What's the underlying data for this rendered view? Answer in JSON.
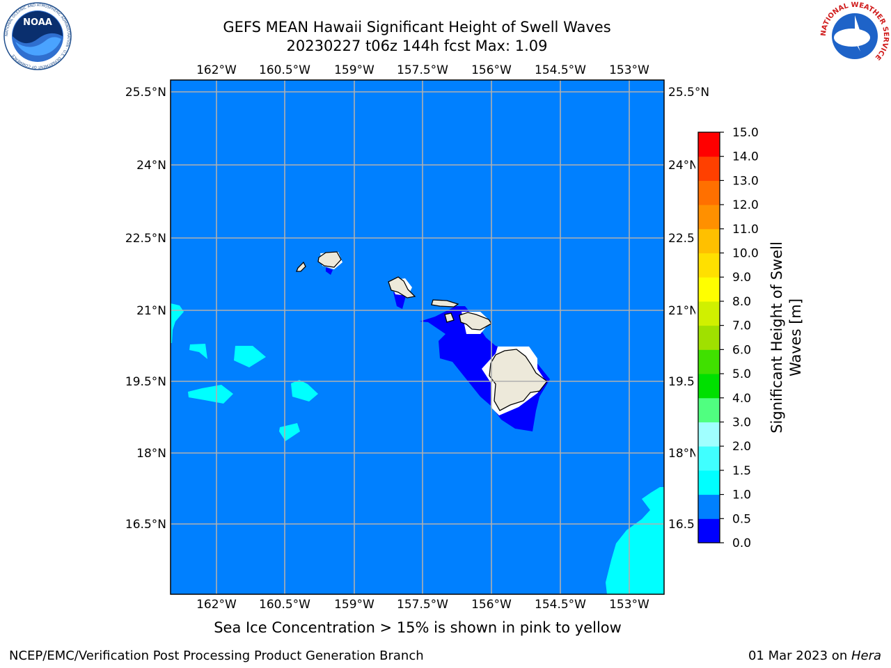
{
  "title_line1": "GEFS MEAN Hawaii Significant Height of Swell Waves",
  "title_line2": "20230227 t06z 144h fcst   Max: 1.09",
  "subtitle": "Sea Ice Concentration > 15% is shown in pink to yellow",
  "footer_left": "NCEP/EMC/Verification Post Processing Product Generation Branch",
  "footer_date": "01 Mar 2023 on ",
  "footer_machine": "Hera",
  "logos": {
    "noaa_text": "NOAA",
    "noaa_ring_text": "NATIONAL OCEANIC AND ATMOSPHERIC ADMINISTRATION · U.S. DEPARTMENT OF COMMERCE",
    "nws_ring_text": "NATIONAL WEATHER SERVICE"
  },
  "colorbar": {
    "label_line1": "Significant Height of Swell",
    "label_line2": "Waves [m]",
    "ticks": [
      "0.0",
      "0.5",
      "1.0",
      "1.5",
      "2.0",
      "3.0",
      "4.0",
      "5.0",
      "6.0",
      "7.0",
      "8.0",
      "9.0",
      "10.0",
      "11.0",
      "12.0",
      "13.0",
      "14.0",
      "15.0"
    ],
    "colors": [
      "#0000ff",
      "#0080ff",
      "#00ffff",
      "#40ffff",
      "#a0ffff",
      "#50ff80",
      "#00e000",
      "#40e000",
      "#a0e000",
      "#d0f000",
      "#ffff00",
      "#ffe000",
      "#ffc000",
      "#ff9000",
      "#ff7000",
      "#ff4000",
      "#ff0000"
    ]
  },
  "map": {
    "lon_labels": [
      "162°W",
      "160.5°W",
      "159°W",
      "157.5°W",
      "156°W",
      "154.5°W",
      "153°W"
    ],
    "lat_labels": [
      "25.5°N",
      "24°N",
      "22.5°N",
      "21°N",
      "19.5°N",
      "18°N",
      "16.5°N"
    ],
    "ocean_color": "#0080ff",
    "land_color": "#ede9da",
    "grid": true
  }
}
